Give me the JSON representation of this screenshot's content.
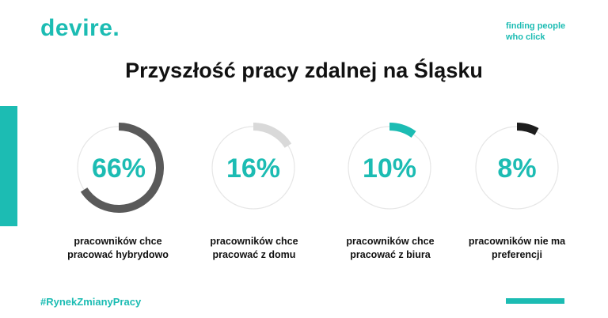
{
  "brand": {
    "logo": "devire.",
    "tagline_line1": "finding people",
    "tagline_line2": "who click"
  },
  "title": "Przyszłość pracy zdalnej na Śląsku",
  "hashtag": "#RynekZmianyPracy",
  "colors": {
    "accent": "#1cbcb3",
    "track": "#e6e6e6",
    "text": "#111111"
  },
  "chart_data": {
    "type": "pie",
    "title": "Przyszłość pracy zdalnej na Śląsku",
    "unit": "%",
    "items": [
      {
        "value": 66,
        "label": "66%",
        "caption": "pracowników chce pracować hybrydowo",
        "color": "#5a5a5a"
      },
      {
        "value": 16,
        "label": "16%",
        "caption": "pracowników chce pracować z domu",
        "color": "#d9d9d9"
      },
      {
        "value": 10,
        "label": "10%",
        "caption": "pracowników chce pracować z biura",
        "color": "#1cbcb3"
      },
      {
        "value": 8,
        "label": "8%",
        "caption": "pracowników nie ma preferencji",
        "color": "#1d1d1d"
      }
    ]
  }
}
